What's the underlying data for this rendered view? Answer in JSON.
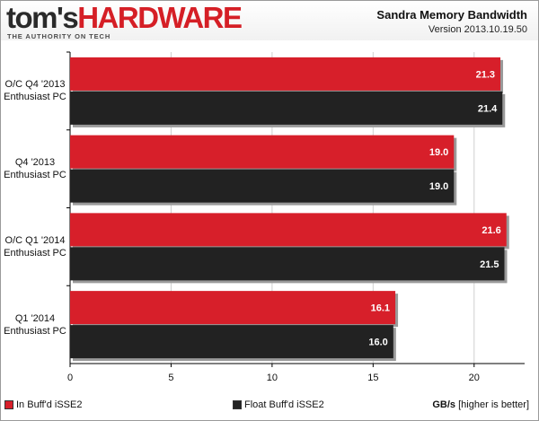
{
  "header": {
    "logo_part1": "tom's",
    "logo_part2": "HARDWARE",
    "tagline": "THE AUTHORITY ON TECH",
    "title": "Sandra Memory Bandwidth",
    "subtitle": "Version 2013.10.19.50"
  },
  "colors": {
    "series1": "#d71f2a",
    "series2": "#222222",
    "grid": "#d0d0d0"
  },
  "chart_data": {
    "type": "bar",
    "orientation": "horizontal",
    "categories": [
      [
        "O/C Q4 '2013",
        "Enthusiast PC"
      ],
      [
        "Q4 '2013",
        "Enthusiast PC"
      ],
      [
        "O/C Q1 '2014",
        "Enthusiast PC"
      ],
      [
        "Q1 '2014",
        "Enthusiast PC"
      ]
    ],
    "series": [
      {
        "name": "In Buff'd iSSE2",
        "values": [
          21.3,
          19.0,
          21.6,
          16.1
        ],
        "value_labels": [
          "21.3",
          "19.0",
          "21.6",
          "16.1"
        ]
      },
      {
        "name": "Float Buff'd iSSE2",
        "values": [
          21.4,
          19.0,
          21.5,
          16.0
        ],
        "value_labels": [
          "21.4",
          "19.0",
          "21.5",
          "16.0"
        ]
      }
    ],
    "xlim": [
      0,
      22.5
    ],
    "xticks": [
      0,
      5,
      10,
      15,
      20
    ],
    "xtick_labels": [
      "0",
      "5",
      "10",
      "15",
      "20"
    ],
    "xlabel_bold": "GB/s",
    "xlabel_rest": "[higher is better]",
    "grid": true,
    "legend_position": "bottom-left"
  }
}
